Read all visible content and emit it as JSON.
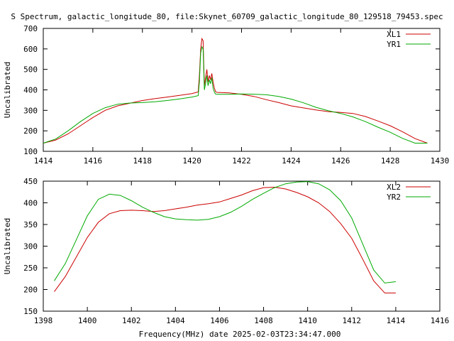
{
  "title": "S Spectrum, galactic_longitude_80, file:Skynet_60709_galactic_longitude_80_129518_79453.spec",
  "xlabel_bottom": "Frequency(MHz) date 2025-02-03T23:34:47.000",
  "colors": {
    "xl": "#cc0000",
    "yr": "#00aa00",
    "axis": "#000000"
  },
  "chart_data": [
    {
      "type": "line",
      "xlim": [
        1414,
        1430
      ],
      "ylim": [
        100,
        700
      ],
      "xticks": [
        1414,
        1416,
        1418,
        1420,
        1422,
        1424,
        1426,
        1428,
        1430
      ],
      "yticks": [
        100,
        200,
        300,
        400,
        500,
        600,
        700
      ],
      "ylabel": "Uncalibrated",
      "grid": false,
      "legend": "top-right",
      "series": [
        {
          "name": "XL1",
          "color": "#cc0000",
          "points": [
            [
              1414,
              140
            ],
            [
              1414.5,
              155
            ],
            [
              1415,
              185
            ],
            [
              1415.5,
              225
            ],
            [
              1416,
              265
            ],
            [
              1416.5,
              300
            ],
            [
              1417,
              322
            ],
            [
              1417.5,
              335
            ],
            [
              1418,
              348
            ],
            [
              1418.5,
              357
            ],
            [
              1419,
              365
            ],
            [
              1419.5,
              373
            ],
            [
              1420,
              382
            ],
            [
              1420.25,
              390
            ],
            [
              1420.3,
              470
            ],
            [
              1420.35,
              600
            ],
            [
              1420.4,
              650
            ],
            [
              1420.45,
              640
            ],
            [
              1420.5,
              420
            ],
            [
              1420.55,
              460
            ],
            [
              1420.6,
              500
            ],
            [
              1420.65,
              440
            ],
            [
              1420.7,
              470
            ],
            [
              1420.75,
              450
            ],
            [
              1420.8,
              480
            ],
            [
              1420.85,
              440
            ],
            [
              1420.9,
              410
            ],
            [
              1420.95,
              392
            ],
            [
              1421,
              388
            ],
            [
              1421.5,
              385
            ],
            [
              1422,
              378
            ],
            [
              1422.5,
              368
            ],
            [
              1423,
              352
            ],
            [
              1423.5,
              338
            ],
            [
              1424,
              322
            ],
            [
              1424.5,
              312
            ],
            [
              1425,
              302
            ],
            [
              1425.5,
              294
            ],
            [
              1426,
              290
            ],
            [
              1426.5,
              285
            ],
            [
              1427,
              270
            ],
            [
              1427.5,
              248
            ],
            [
              1428,
              225
            ],
            [
              1428.5,
              195
            ],
            [
              1429,
              162
            ],
            [
              1429.5,
              140
            ]
          ]
        },
        {
          "name": "YR1",
          "color": "#00aa00",
          "points": [
            [
              1414,
              140
            ],
            [
              1414.5,
              160
            ],
            [
              1415,
              200
            ],
            [
              1415.5,
              245
            ],
            [
              1416,
              285
            ],
            [
              1416.5,
              313
            ],
            [
              1417,
              330
            ],
            [
              1417.5,
              336
            ],
            [
              1418,
              338
            ],
            [
              1418.5,
              342
            ],
            [
              1419,
              348
            ],
            [
              1419.5,
              356
            ],
            [
              1420,
              365
            ],
            [
              1420.25,
              372
            ],
            [
              1420.3,
              440
            ],
            [
              1420.35,
              580
            ],
            [
              1420.4,
              610
            ],
            [
              1420.45,
              600
            ],
            [
              1420.5,
              400
            ],
            [
              1420.55,
              430
            ],
            [
              1420.6,
              470
            ],
            [
              1420.65,
              420
            ],
            [
              1420.7,
              450
            ],
            [
              1420.75,
              430
            ],
            [
              1420.8,
              460
            ],
            [
              1420.85,
              410
            ],
            [
              1420.9,
              390
            ],
            [
              1420.95,
              380
            ],
            [
              1421,
              378
            ],
            [
              1421.5,
              378
            ],
            [
              1422,
              380
            ],
            [
              1422.5,
              379
            ],
            [
              1423,
              376
            ],
            [
              1423.5,
              368
            ],
            [
              1424,
              355
            ],
            [
              1424.5,
              337
            ],
            [
              1425,
              315
            ],
            [
              1425.5,
              298
            ],
            [
              1426,
              285
            ],
            [
              1426.5,
              268
            ],
            [
              1427,
              245
            ],
            [
              1427.5,
              218
            ],
            [
              1428,
              193
            ],
            [
              1428.5,
              163
            ],
            [
              1429,
              140
            ],
            [
              1429.5,
              140
            ]
          ]
        }
      ]
    },
    {
      "type": "line",
      "xlim": [
        1398,
        1416
      ],
      "ylim": [
        150,
        450
      ],
      "xticks": [
        1398,
        1400,
        1402,
        1404,
        1406,
        1408,
        1410,
        1412,
        1414,
        1416
      ],
      "yticks": [
        150,
        200,
        250,
        300,
        350,
        400,
        450
      ],
      "ylabel": "Uncalibrated",
      "grid": false,
      "legend": "top-right",
      "series": [
        {
          "name": "XL2",
          "color": "#cc0000",
          "points": [
            [
              1398.5,
              195
            ],
            [
              1399,
              230
            ],
            [
              1399.5,
              275
            ],
            [
              1400,
              320
            ],
            [
              1400.5,
              355
            ],
            [
              1401,
              375
            ],
            [
              1401.5,
              382
            ],
            [
              1402,
              383
            ],
            [
              1402.5,
              382
            ],
            [
              1403,
              380
            ],
            [
              1403.5,
              382
            ],
            [
              1404,
              386
            ],
            [
              1404.5,
              390
            ],
            [
              1405,
              395
            ],
            [
              1405.5,
              398
            ],
            [
              1406,
              402
            ],
            [
              1406.5,
              410
            ],
            [
              1407,
              418
            ],
            [
              1407.5,
              428
            ],
            [
              1408,
              435
            ],
            [
              1408.5,
              436
            ],
            [
              1409,
              432
            ],
            [
              1409.5,
              424
            ],
            [
              1410,
              414
            ],
            [
              1410.5,
              400
            ],
            [
              1411,
              380
            ],
            [
              1411.5,
              352
            ],
            [
              1412,
              318
            ],
            [
              1412.5,
              270
            ],
            [
              1413,
              220
            ],
            [
              1413.5,
              192
            ],
            [
              1414,
              192
            ]
          ]
        },
        {
          "name": "YR2",
          "color": "#00aa00",
          "points": [
            [
              1398.5,
              220
            ],
            [
              1399,
              260
            ],
            [
              1399.5,
              315
            ],
            [
              1400,
              370
            ],
            [
              1400.5,
              408
            ],
            [
              1401,
              420
            ],
            [
              1401.5,
              417
            ],
            [
              1402,
              405
            ],
            [
              1402.5,
              390
            ],
            [
              1403,
              378
            ],
            [
              1403.5,
              368
            ],
            [
              1404,
              363
            ],
            [
              1404.5,
              361
            ],
            [
              1405,
              360
            ],
            [
              1405.5,
              362
            ],
            [
              1406,
              368
            ],
            [
              1406.5,
              378
            ],
            [
              1407,
              392
            ],
            [
              1407.5,
              408
            ],
            [
              1408,
              422
            ],
            [
              1408.5,
              435
            ],
            [
              1409,
              444
            ],
            [
              1409.5,
              448
            ],
            [
              1410,
              449
            ],
            [
              1410.5,
              444
            ],
            [
              1411,
              430
            ],
            [
              1411.5,
              405
            ],
            [
              1412,
              365
            ],
            [
              1412.5,
              305
            ],
            [
              1413,
              245
            ],
            [
              1413.5,
              215
            ],
            [
              1414,
              218
            ]
          ]
        }
      ]
    }
  ]
}
